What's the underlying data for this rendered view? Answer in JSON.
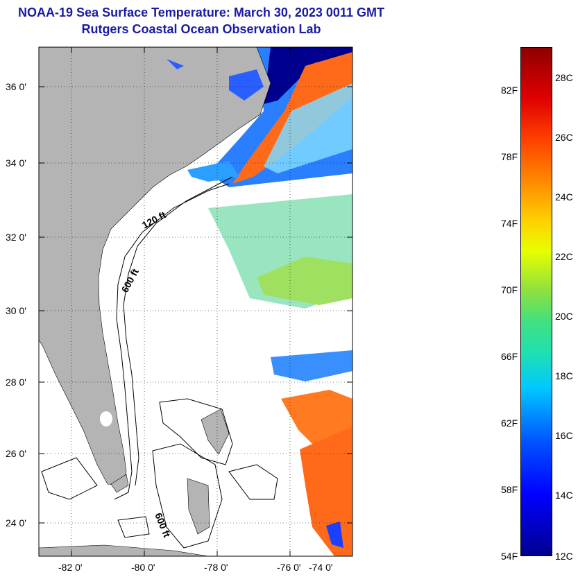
{
  "title_line1": "NOAA-19 Sea Surface Temperature:  March 30, 2023 0011 GMT",
  "title_line2": "Rutgers Coastal Ocean Observation Lab",
  "latitude_labels": [
    "36 0'",
    "34 0'",
    "32 0'",
    "30 0'",
    "28 0'",
    "26 0'",
    "24 0'"
  ],
  "longitude_labels": [
    "-82 0'",
    "-80 0'",
    "-78 0'",
    "-76 0'",
    "-74 0'"
  ],
  "isobath_labels": [
    "120 ft",
    "600 ft",
    "600 ft"
  ],
  "colorbar": {
    "fahrenheit_labels": [
      "82F",
      "78F",
      "74F",
      "70F",
      "66F",
      "62F",
      "58F",
      "54F"
    ],
    "celsius_labels": [
      "28C",
      "26C",
      "24C",
      "22C",
      "20C",
      "18C",
      "16C",
      "14C",
      "12C"
    ],
    "min_color": "#00008f",
    "max_color": "#8f0000"
  },
  "colors": {
    "title": "#1a1aa6",
    "land": "#b4b4b4",
    "cloud_mask": "#ffffff"
  }
}
